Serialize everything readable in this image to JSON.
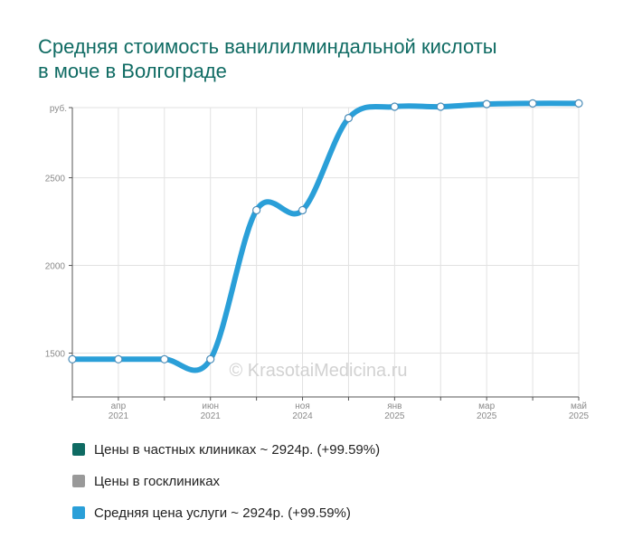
{
  "title": "Средняя стоимость ванилилминдальной кислоты в моче в Волгограде",
  "watermark": "© KrasotaiMedicina.ru",
  "legend": [
    {
      "label": "Цены в частных клиниках ~ 2924р. (+99.59%)",
      "color": "#0f6b63"
    },
    {
      "label": "Цены в госклиниках",
      "color": "#999999"
    },
    {
      "label": "Средняя цена услуги ~ 2924р. (+99.59%)",
      "color": "#2a9fd8"
    }
  ],
  "chart_data": {
    "type": "line",
    "ylabel": "руб.",
    "ylim": [
      1250,
      2900
    ],
    "yticks": [
      1500,
      2000,
      2500
    ],
    "x_ticks": [
      {
        "month": "апр",
        "year": "2021"
      },
      {
        "month": "июн",
        "year": "2021"
      },
      {
        "month": "ноя",
        "year": "2024"
      },
      {
        "month": "янв",
        "year": "2025"
      },
      {
        "month": "мар",
        "year": "2025"
      },
      {
        "month": "май",
        "year": "2025"
      }
    ],
    "grid": true,
    "series": [
      {
        "name": "Средняя цена услуги",
        "color": "#2a9fd8",
        "values": [
          1465,
          1465,
          1465,
          1465,
          2315,
          2315,
          2840,
          2905,
          2905,
          2920,
          2924,
          2924
        ]
      }
    ]
  }
}
